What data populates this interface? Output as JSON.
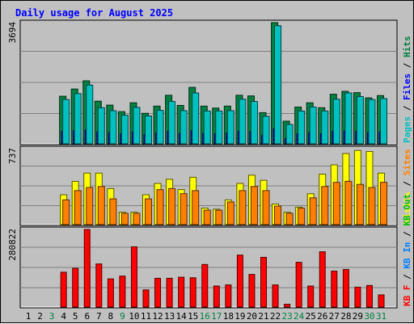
{
  "chart_data": [
    {
      "type": "bar",
      "title": "Daily usage for August 2025",
      "ylabel_max": "3694",
      "legend": [
        {
          "label": "Pages",
          "color": "#00c0c0"
        },
        {
          "sep": " / "
        },
        {
          "label": "Files",
          "color": "#0000ff"
        },
        {
          "sep": " / "
        },
        {
          "label": "Hits",
          "color": "#008040"
        }
      ],
      "ylim": [
        0,
        3694
      ],
      "categories": [
        "1",
        "2",
        "3",
        "4",
        "5",
        "6",
        "7",
        "8",
        "9",
        "10",
        "11",
        "12",
        "13",
        "14",
        "15",
        "16",
        "17",
        "18",
        "19",
        "20",
        "21",
        "22",
        "23",
        "24",
        "25",
        "26",
        "27",
        "28",
        "29",
        "30",
        "31"
      ],
      "day_colors": [
        "#000000",
        "#000000",
        "#008040",
        "#000000",
        "#000000",
        "#000000",
        "#000000",
        "#000000",
        "#008040",
        "#000000",
        "#000000",
        "#000000",
        "#000000",
        "#000000",
        "#000000",
        "#008040",
        "#008040",
        "#000000",
        "#000000",
        "#000000",
        "#000000",
        "#000000",
        "#008040",
        "#008040",
        "#000000",
        "#000000",
        "#000000",
        "#000000",
        "#000000",
        "#008040",
        "#008040"
      ],
      "series": [
        {
          "name": "Hits",
          "color": "#008040",
          "values": [
            null,
            null,
            null,
            1450,
            1670,
            1920,
            1300,
            1180,
            980,
            1250,
            930,
            1150,
            1480,
            1170,
            1720,
            1150,
            1090,
            1150,
            1480,
            1460,
            950,
            3694,
            690,
            1120,
            1250,
            1100,
            1510,
            1600,
            1560,
            1400,
            1470
          ]
        },
        {
          "name": "Files",
          "color": "#0000ff",
          "values": [
            null,
            null,
            null,
            380,
            400,
            420,
            360,
            340,
            300,
            360,
            280,
            330,
            380,
            320,
            400,
            320,
            300,
            330,
            380,
            370,
            260,
            460,
            160,
            300,
            340,
            310,
            380,
            390,
            380,
            350,
            360
          ]
        },
        {
          "name": "Pages",
          "color": "#00c0c0",
          "values": [
            null,
            null,
            null,
            1350,
            1530,
            1790,
            1100,
            1010,
            870,
            1110,
            850,
            1020,
            1290,
            1010,
            1550,
            1000,
            1000,
            1010,
            1360,
            1290,
            840,
            3600,
            590,
            1000,
            1120,
            1000,
            1360,
            1550,
            1440,
            1350,
            1380
          ]
        }
      ]
    },
    {
      "type": "bar",
      "ylabel_max": "737",
      "legend": [
        {
          "label": "Visits",
          "color": "#ffff00"
        },
        {
          "sep": " / "
        },
        {
          "label": "Sites",
          "color": "#ff8000"
        }
      ],
      "ylim": [
        0,
        737
      ],
      "series": [
        {
          "name": "Visits",
          "color": "#ffff00",
          "values": [
            null,
            null,
            null,
            290,
            420,
            500,
            500,
            350,
            120,
            120,
            290,
            400,
            440,
            340,
            460,
            160,
            150,
            240,
            400,
            480,
            430,
            200,
            120,
            170,
            300,
            490,
            580,
            690,
            720,
            710,
            500
          ]
        },
        {
          "name": "Sites",
          "color": "#ff8000",
          "values": [
            null,
            null,
            null,
            240,
            330,
            360,
            370,
            250,
            110,
            110,
            250,
            340,
            350,
            300,
            330,
            140,
            140,
            220,
            330,
            370,
            330,
            180,
            110,
            160,
            260,
            370,
            410,
            420,
            390,
            360,
            410
          ]
        }
      ]
    },
    {
      "type": "bar",
      "ylabel_max": "280822",
      "legend": [
        {
          "label": "KB F",
          "color": "#ff0000"
        },
        {
          "sep": " / "
        },
        {
          "label": "KB In",
          "color": "#0080ff"
        },
        {
          "sep": " / "
        },
        {
          "label": "KB Out",
          "color": "#00c000"
        }
      ],
      "ylim": [
        0,
        280822
      ],
      "series": [
        {
          "name": "KB F",
          "color": "#ff0000",
          "values": [
            null,
            null,
            null,
            126000,
            140000,
            280822,
            156000,
            102000,
            112000,
            218000,
            62000,
            104000,
            104000,
            108000,
            106000,
            154000,
            76000,
            80000,
            188000,
            118000,
            180000,
            80000,
            10000,
            162000,
            76000,
            200000,
            130000,
            136000,
            72000,
            78000,
            44000
          ]
        }
      ]
    }
  ]
}
